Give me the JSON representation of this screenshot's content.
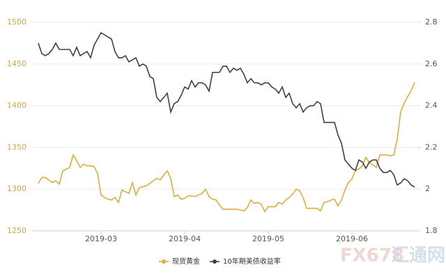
{
  "chart_data": {
    "type": "line",
    "categories": [
      null,
      null,
      null,
      null,
      null,
      null,
      null,
      null,
      null,
      null,
      null,
      null,
      null,
      null,
      null,
      null,
      null,
      null,
      "2019-03",
      null,
      null,
      null,
      null,
      null,
      null,
      null,
      null,
      null,
      null,
      null,
      null,
      null,
      null,
      null,
      null,
      null,
      null,
      null,
      null,
      null,
      null,
      null,
      "2019-04",
      null,
      null,
      null,
      null,
      null,
      null,
      null,
      null,
      null,
      null,
      null,
      null,
      null,
      null,
      null,
      null,
      null,
      null,
      null,
      null,
      null,
      null,
      null,
      "2019-05",
      null,
      null,
      null,
      null,
      null,
      null,
      null,
      null,
      null,
      null,
      null,
      null,
      null,
      null,
      null,
      null,
      null,
      null,
      null,
      null,
      null,
      null,
      null,
      "2019-06",
      null,
      null,
      null,
      null,
      null,
      null,
      null,
      null,
      null,
      null,
      null,
      null,
      null,
      null,
      null,
      null,
      null,
      null
    ],
    "series": [
      {
        "name": "现货黄金",
        "color": "#dcae3a",
        "axis": "y",
        "values": [
          1307,
          1314,
          1314,
          1311,
          1308,
          1310,
          1306,
          1322,
          1324,
          1326,
          1341,
          1334,
          1326,
          1330,
          1328,
          1328,
          1327,
          1319,
          1293,
          1290,
          1288,
          1287,
          1290,
          1284,
          1299,
          1297,
          1295,
          1308,
          1293,
          1302,
          1303,
          1304,
          1307,
          1310,
          1313,
          1311,
          1317,
          1322,
          1313,
          1291,
          1293,
          1288,
          1289,
          1292,
          1292,
          1291,
          1293,
          1295,
          1300,
          1291,
          1288,
          1287,
          1281,
          1276,
          1276,
          1276,
          1276,
          1276,
          1275,
          1274,
          1278,
          1287,
          1283,
          1284,
          1282,
          1273,
          1279,
          1279,
          1279,
          1284,
          1282,
          1287,
          1290,
          1294,
          1300,
          1298,
          1290,
          1277,
          1277,
          1277,
          1277,
          1274,
          1284,
          1285,
          1287,
          1288,
          1280,
          1287,
          1299,
          1308,
          1312,
          1322,
          1324,
          1328,
          1338,
          1332,
          1329,
          1326,
          1341,
          1341,
          1341,
          1340,
          1341,
          1360,
          1393,
          1403,
          1411,
          1418,
          1428
        ]
      },
      {
        "name": "10年期美债收益率",
        "color": "#3f3f3f",
        "axis": "y2",
        "values": [
          2.7,
          2.65,
          2.64,
          2.65,
          2.67,
          2.7,
          2.67,
          2.67,
          2.67,
          2.67,
          2.64,
          2.68,
          2.64,
          2.65,
          2.66,
          2.63,
          2.69,
          2.72,
          2.75,
          2.74,
          2.73,
          2.72,
          2.66,
          2.63,
          2.63,
          2.64,
          2.61,
          2.62,
          2.63,
          2.59,
          2.6,
          2.59,
          2.54,
          2.53,
          2.44,
          2.42,
          2.44,
          2.46,
          2.37,
          2.41,
          2.42,
          2.45,
          2.49,
          2.48,
          2.52,
          2.49,
          2.51,
          2.51,
          2.5,
          2.47,
          2.56,
          2.56,
          2.56,
          2.59,
          2.59,
          2.56,
          2.58,
          2.57,
          2.58,
          2.55,
          2.51,
          2.53,
          2.51,
          2.51,
          2.5,
          2.51,
          2.51,
          2.49,
          2.48,
          2.46,
          2.49,
          2.44,
          2.46,
          2.41,
          2.39,
          2.41,
          2.37,
          2.39,
          2.4,
          2.4,
          2.42,
          2.41,
          2.32,
          2.32,
          2.32,
          2.32,
          2.26,
          2.22,
          2.14,
          2.12,
          2.1,
          2.09,
          2.14,
          2.13,
          2.1,
          2.13,
          2.14,
          2.14,
          2.1,
          2.08,
          2.08,
          2.09,
          2.07,
          2.02,
          2.03,
          2.05,
          2.04,
          2.02,
          2.01
        ]
      }
    ],
    "ylim": [
      1250,
      1500
    ],
    "yticks": [
      1250,
      1300,
      1350,
      1400,
      1450,
      1500
    ],
    "y2lim": [
      1.8,
      2.8
    ],
    "y2ticks": [
      1.8,
      2,
      2.2,
      2.4,
      2.6,
      2.8
    ],
    "grid": true,
    "legend": "bottom",
    "watermark": {
      "brand": "FX678",
      "name": "汇通网"
    }
  }
}
